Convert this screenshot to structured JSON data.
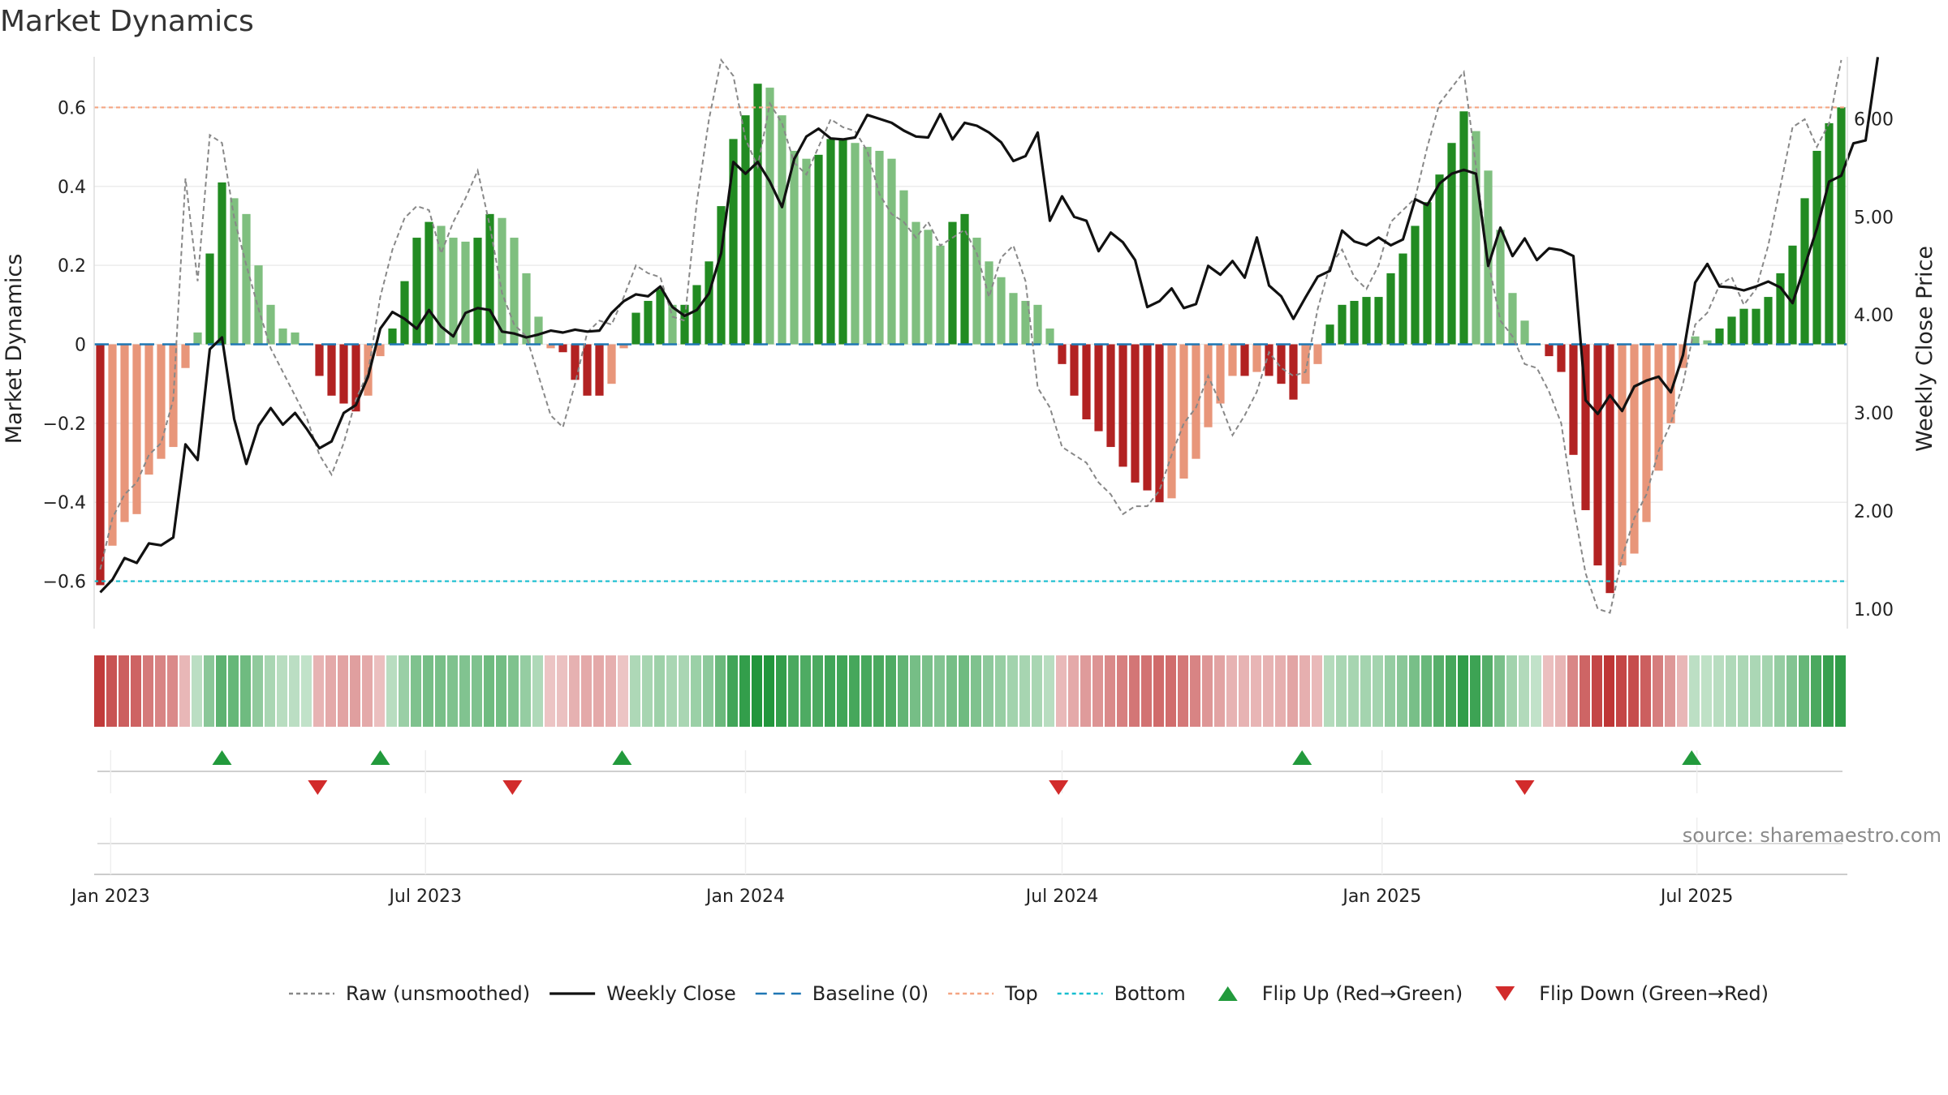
{
  "chart_data": {
    "type": "bar",
    "title": "Market Dynamics",
    "ylabel": "Market Dynamics",
    "y2label": "Weekly Close Price",
    "ylim": [
      -0.72,
      0.72
    ],
    "y2lim": [
      0.8,
      6.6
    ],
    "yticks": [
      {
        "v": 0.6,
        "label": "0.6"
      },
      {
        "v": 0.4,
        "label": "0.4"
      },
      {
        "v": 0.2,
        "label": "0.2"
      },
      {
        "v": 0,
        "label": "0"
      },
      {
        "v": -0.2,
        "label": "−0.2"
      },
      {
        "v": -0.4,
        "label": "−0.4"
      },
      {
        "v": -0.6,
        "label": "−0.6"
      }
    ],
    "y2ticks": [
      {
        "v": 6,
        "label": "6.00"
      },
      {
        "v": 5,
        "label": "5.00"
      },
      {
        "v": 4,
        "label": "4.00"
      },
      {
        "v": 3,
        "label": "3.00"
      },
      {
        "v": 2,
        "label": "2.00"
      },
      {
        "v": 1,
        "label": "1.00"
      }
    ],
    "date_ticks": [
      {
        "date": "2023-01-01",
        "label": "Jan 2023"
      },
      {
        "date": "2023-07-01",
        "label": "Jul 2023"
      },
      {
        "date": "2024-01-01",
        "label": "Jan 2024"
      },
      {
        "date": "2024-07-01",
        "label": "Jul 2024"
      },
      {
        "date": "2025-01-01",
        "label": "Jan 2025"
      },
      {
        "date": "2025-07-01",
        "label": "Jul 2025"
      }
    ],
    "start_date": "2022-12-26",
    "top": 0.6,
    "bottom": -0.6,
    "baseline": 0,
    "colors": {
      "strong_green": "#228b22",
      "light_green": "#7fbf7f",
      "strong_red": "#b22222",
      "light_red": "#e8967a",
      "top": "#f4a582",
      "bottom": "#17becf",
      "baseline": "#1f77b4",
      "raw": "#888888",
      "close": "#111111"
    },
    "legend_position": "bottom",
    "series": [
      {
        "name": "Market Dynamics",
        "values": [
          -0.61,
          -0.51,
          -0.45,
          -0.43,
          -0.33,
          -0.29,
          -0.26,
          -0.06,
          0.03,
          0.23,
          0.41,
          0.37,
          0.33,
          0.2,
          0.1,
          0.04,
          0.03,
          0.0,
          -0.08,
          -0.13,
          -0.15,
          -0.17,
          -0.13,
          -0.03,
          0.04,
          0.16,
          0.27,
          0.31,
          0.3,
          0.27,
          0.26,
          0.27,
          0.33,
          0.32,
          0.27,
          0.18,
          0.07,
          -0.01,
          -0.02,
          -0.09,
          -0.13,
          -0.13,
          -0.1,
          -0.01,
          0.08,
          0.11,
          0.14,
          0.1,
          0.1,
          0.15,
          0.21,
          0.35,
          0.52,
          0.58,
          0.66,
          0.65,
          0.58,
          0.49,
          0.47,
          0.48,
          0.52,
          0.52,
          0.51,
          0.5,
          0.49,
          0.47,
          0.39,
          0.31,
          0.29,
          0.25,
          0.31,
          0.33,
          0.27,
          0.21,
          0.17,
          0.13,
          0.11,
          0.1,
          0.04,
          -0.05,
          -0.13,
          -0.19,
          -0.22,
          -0.26,
          -0.31,
          -0.35,
          -0.37,
          -0.4,
          -0.39,
          -0.34,
          -0.29,
          -0.21,
          -0.15,
          -0.08,
          -0.08,
          -0.07,
          -0.08,
          -0.1,
          -0.14,
          -0.1,
          -0.05,
          0.05,
          0.1,
          0.11,
          0.12,
          0.12,
          0.18,
          0.23,
          0.3,
          0.36,
          0.43,
          0.51,
          0.59,
          0.54,
          0.44,
          0.29,
          0.13,
          0.06,
          0.0,
          -0.03,
          -0.07,
          -0.28,
          -0.42,
          -0.56,
          -0.63,
          -0.56,
          -0.53,
          -0.45,
          -0.32,
          -0.2,
          -0.06,
          0.02,
          0.01,
          0.04,
          0.07,
          0.09,
          0.09,
          0.12,
          0.18,
          0.25,
          0.37,
          0.49,
          0.56,
          0.6
        ]
      },
      {
        "name": "Raw (unsmoothed)",
        "values": [
          -0.57,
          -0.44,
          -0.38,
          -0.35,
          -0.28,
          -0.25,
          -0.14,
          0.42,
          0.16,
          0.53,
          0.51,
          0.32,
          0.2,
          0.09,
          -0.01,
          -0.07,
          -0.13,
          -0.19,
          -0.28,
          -0.33,
          -0.25,
          -0.14,
          -0.07,
          0.12,
          0.24,
          0.32,
          0.35,
          0.34,
          0.23,
          0.31,
          0.37,
          0.44,
          0.3,
          0.13,
          0.05,
          0.02,
          -0.08,
          -0.18,
          -0.21,
          -0.1,
          0.03,
          0.06,
          0.05,
          0.12,
          0.2,
          0.18,
          0.17,
          0.07,
          0.06,
          0.36,
          0.57,
          0.72,
          0.68,
          0.52,
          0.45,
          0.61,
          0.56,
          0.46,
          0.43,
          0.5,
          0.57,
          0.55,
          0.54,
          0.49,
          0.38,
          0.33,
          0.31,
          0.27,
          0.31,
          0.25,
          0.27,
          0.29,
          0.23,
          0.12,
          0.22,
          0.25,
          0.16,
          -0.11,
          -0.16,
          -0.26,
          -0.28,
          -0.3,
          -0.35,
          -0.38,
          -0.43,
          -0.41,
          -0.41,
          -0.37,
          -0.28,
          -0.2,
          -0.16,
          -0.08,
          -0.15,
          -0.23,
          -0.18,
          -0.12,
          -0.02,
          -0.06,
          -0.08,
          -0.07,
          0.09,
          0.2,
          0.24,
          0.17,
          0.14,
          0.2,
          0.31,
          0.34,
          0.37,
          0.5,
          0.61,
          0.65,
          0.69,
          0.45,
          0.21,
          0.06,
          0.02,
          -0.05,
          -0.06,
          -0.12,
          -0.2,
          -0.41,
          -0.58,
          -0.67,
          -0.68,
          -0.54,
          -0.44,
          -0.38,
          -0.27,
          -0.2,
          -0.1,
          0.05,
          0.08,
          0.15,
          0.17,
          0.1,
          0.14,
          0.25,
          0.4,
          0.55,
          0.57,
          0.5,
          0.56,
          0.72
        ]
      },
      {
        "name": "Weekly Close",
        "values": [
          1.17,
          1.3,
          1.52,
          1.47,
          1.67,
          1.65,
          1.73,
          2.68,
          2.52,
          3.65,
          3.77,
          2.94,
          2.48,
          2.87,
          3.05,
          2.88,
          3.0,
          2.83,
          2.64,
          2.71,
          3.0,
          3.08,
          3.37,
          3.86,
          4.03,
          3.96,
          3.86,
          4.05,
          3.88,
          3.78,
          4.02,
          4.07,
          4.05,
          3.83,
          3.81,
          3.77,
          3.8,
          3.84,
          3.82,
          3.85,
          3.83,
          3.84,
          4.02,
          4.14,
          4.21,
          4.19,
          4.29,
          4.08,
          3.99,
          4.05,
          4.22,
          4.63,
          5.56,
          5.44,
          5.56,
          5.36,
          5.1,
          5.59,
          5.82,
          5.9,
          5.8,
          5.79,
          5.81,
          6.04,
          6.0,
          5.96,
          5.88,
          5.82,
          5.81,
          6.05,
          5.79,
          5.96,
          5.93,
          5.86,
          5.76,
          5.57,
          5.62,
          5.86,
          4.96,
          5.21,
          5.0,
          4.96,
          4.65,
          4.84,
          4.74,
          4.56,
          4.08,
          4.14,
          4.27,
          4.07,
          4.11,
          4.5,
          4.41,
          4.55,
          4.38,
          4.79,
          4.3,
          4.19,
          3.96,
          4.18,
          4.39,
          4.45,
          4.86,
          4.75,
          4.71,
          4.79,
          4.71,
          4.77,
          5.18,
          5.12,
          5.34,
          5.44,
          5.48,
          5.44,
          4.5,
          4.89,
          4.6,
          4.78,
          4.56,
          4.68,
          4.66,
          4.6,
          3.13,
          2.99,
          3.18,
          3.02,
          3.27,
          3.33,
          3.37,
          3.21,
          3.59,
          4.33,
          4.52,
          4.29,
          4.28,
          4.25,
          4.29,
          4.34,
          4.28,
          4.12,
          4.5,
          4.88,
          5.36,
          5.42,
          5.75,
          5.78,
          6.63
        ]
      }
    ],
    "regime_strip": [
      -0.61,
      -0.51,
      -0.45,
      -0.43,
      -0.33,
      -0.29,
      -0.26,
      -0.06,
      0.03,
      0.23,
      0.41,
      0.37,
      0.33,
      0.2,
      0.1,
      0.04,
      0.03,
      0.0,
      -0.08,
      -0.13,
      -0.15,
      -0.17,
      -0.13,
      -0.03,
      0.04,
      0.16,
      0.27,
      0.31,
      0.3,
      0.27,
      0.26,
      0.27,
      0.33,
      0.32,
      0.27,
      0.18,
      0.07,
      -0.01,
      -0.02,
      -0.09,
      -0.13,
      -0.13,
      -0.1,
      -0.01,
      0.08,
      0.11,
      0.14,
      0.1,
      0.1,
      0.15,
      0.21,
      0.35,
      0.52,
      0.58,
      0.66,
      0.65,
      0.58,
      0.49,
      0.47,
      0.48,
      0.52,
      0.52,
      0.51,
      0.5,
      0.49,
      0.47,
      0.39,
      0.31,
      0.29,
      0.25,
      0.31,
      0.33,
      0.27,
      0.21,
      0.17,
      0.13,
      0.11,
      0.1,
      0.04,
      -0.05,
      -0.13,
      -0.19,
      -0.22,
      -0.26,
      -0.31,
      -0.35,
      -0.37,
      -0.4,
      -0.39,
      -0.34,
      -0.29,
      -0.21,
      -0.15,
      -0.08,
      -0.08,
      -0.07,
      -0.08,
      -0.1,
      -0.14,
      -0.1,
      -0.05,
      0.05,
      0.1,
      0.11,
      0.12,
      0.12,
      0.18,
      0.23,
      0.3,
      0.36,
      0.43,
      0.51,
      0.59,
      0.54,
      0.44,
      0.29,
      0.13,
      0.06,
      0.0,
      -0.03,
      -0.07,
      -0.28,
      -0.42,
      -0.56,
      -0.63,
      -0.56,
      -0.53,
      -0.45,
      -0.32,
      -0.2,
      -0.06,
      0.02,
      0.01,
      0.04,
      0.07,
      0.09,
      0.09,
      0.12,
      0.18,
      0.25,
      0.37,
      0.49,
      0.56,
      0.6
    ],
    "flips": [
      {
        "type": "up",
        "date": "2023-03-06"
      },
      {
        "type": "down",
        "date": "2023-04-30"
      },
      {
        "type": "up",
        "date": "2023-06-05"
      },
      {
        "type": "down",
        "date": "2023-08-20"
      },
      {
        "type": "up",
        "date": "2023-10-22"
      },
      {
        "type": "down",
        "date": "2024-06-29"
      },
      {
        "type": "up",
        "date": "2024-11-16"
      },
      {
        "type": "down",
        "date": "2025-03-24"
      },
      {
        "type": "up",
        "date": "2025-06-28"
      }
    ],
    "legend": [
      {
        "key": "raw",
        "label": "Raw (unsmoothed)",
        "style": "dashed-gray"
      },
      {
        "key": "close",
        "label": "Weekly Close",
        "style": "solid-black"
      },
      {
        "key": "baseline",
        "label": "Baseline (0)",
        "style": "dashed-blue"
      },
      {
        "key": "top",
        "label": "Top",
        "style": "dotted-orange"
      },
      {
        "key": "bottom",
        "label": "Bottom",
        "style": "dotted-cyan"
      },
      {
        "key": "flip_up",
        "label": "Flip Up (Red→Green)",
        "style": "triangle-up-green"
      },
      {
        "key": "flip_down",
        "label": "Flip Down (Green→Red)",
        "style": "triangle-down-red"
      }
    ]
  },
  "source_text": "source: sharemaestro.com"
}
